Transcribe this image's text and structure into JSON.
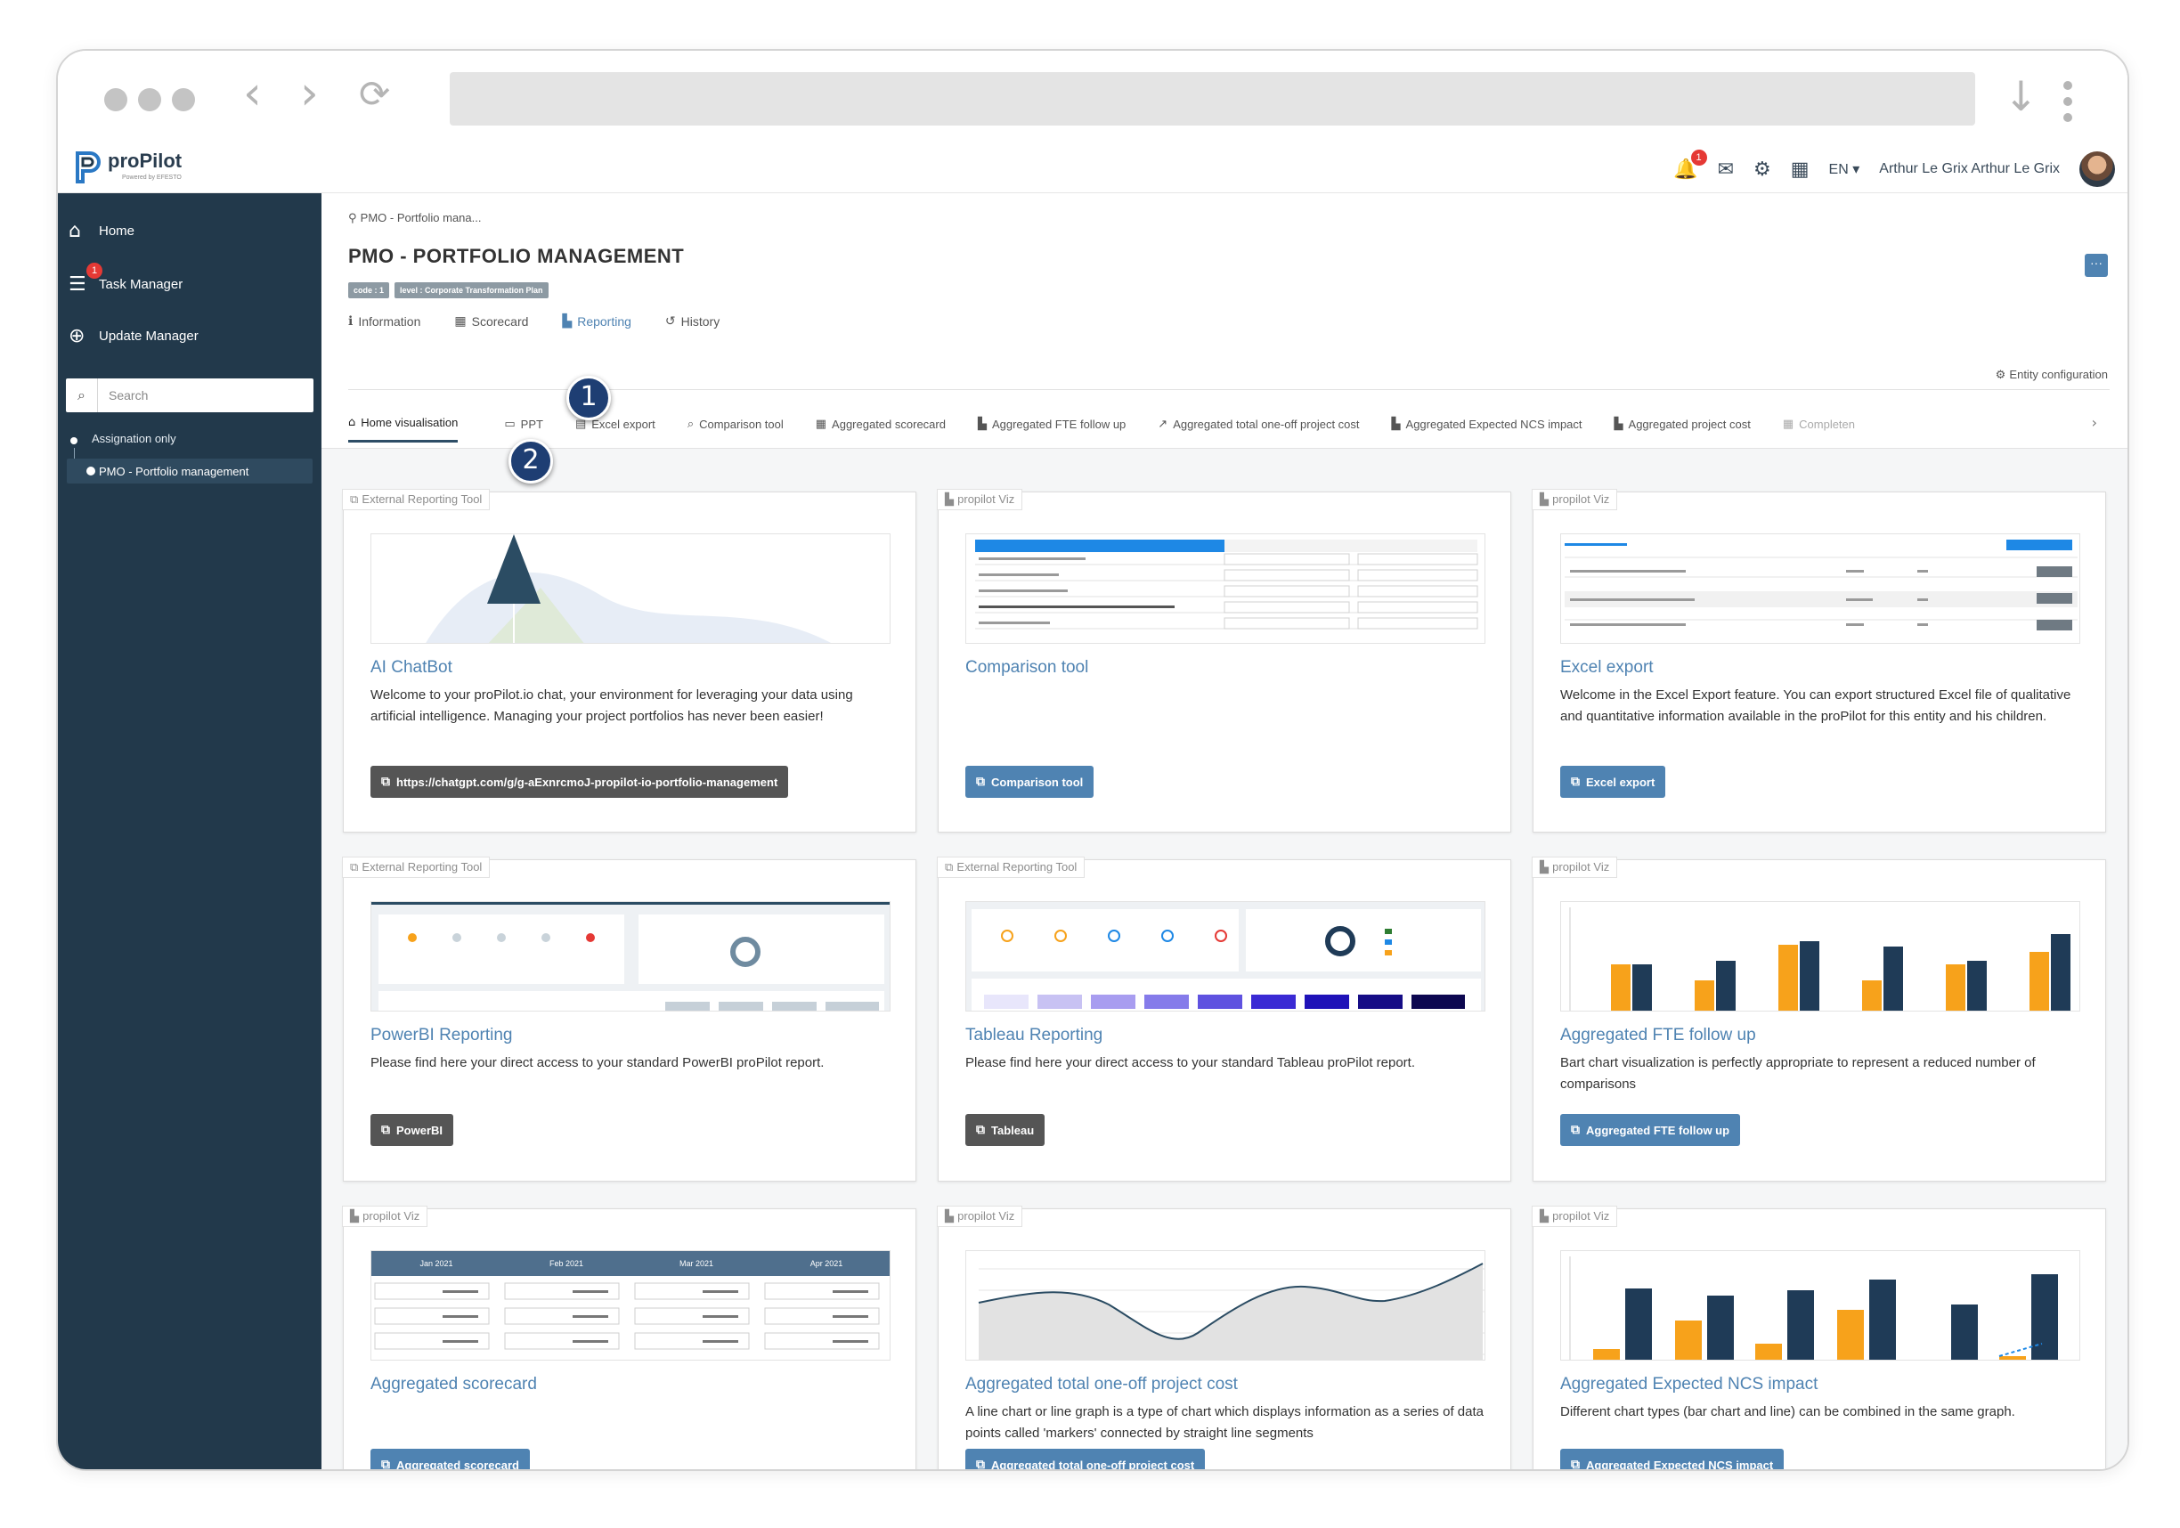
{
  "topbar": {
    "logo_text": "proPilot",
    "logo_sub": "Powered by EFESTO",
    "notification_count": "1",
    "language": "EN",
    "user_name": "Arthur Le Grix Arthur Le Grix"
  },
  "sidebar": {
    "home": "Home",
    "task_manager": "Task Manager",
    "task_badge": "1",
    "update_manager": "Update Manager",
    "search_placeholder": "Search",
    "tree_root": "Assignation only",
    "tree_item": "PMO - Portfolio management"
  },
  "breadcrumb": "PMO - Portfolio mana...",
  "page": {
    "title": "PMO - PORTFOLIO MANAGEMENT",
    "badge_code": "code : 1",
    "badge_level": "level : Corporate Transformation Plan",
    "entity_configuration": "Entity configuration"
  },
  "tabs": [
    {
      "label": "Information",
      "icon": "info-icon"
    },
    {
      "label": "Scorecard",
      "icon": "table-icon"
    },
    {
      "label": "Reporting",
      "icon": "bar-chart-icon"
    },
    {
      "label": "History",
      "icon": "history-icon"
    }
  ],
  "subtabs": [
    {
      "label": "Home visualisation"
    },
    {
      "label": "PPT"
    },
    {
      "label": "Excel export"
    },
    {
      "label": "Comparison tool"
    },
    {
      "label": "Aggregated scorecard"
    },
    {
      "label": "Aggregated FTE follow up"
    },
    {
      "label": "Aggregated total one-off project cost"
    },
    {
      "label": "Aggregated Expected NCS impact"
    },
    {
      "label": "Aggregated project cost"
    },
    {
      "label": "Completen"
    }
  ],
  "callouts": [
    "1",
    "2"
  ],
  "cards": [
    {
      "tag": "External Reporting Tool",
      "title": "AI ChatBot",
      "desc": "Welcome to your proPilot.io chat, your environment for leveraging your data using artificial intelligence. Managing your project portfolios has never been easier!",
      "button": "https://chatgpt.com/g/g-aExnrcmoJ-propilot-io-portfolio-management"
    },
    {
      "tag": "propilot Viz",
      "title": "Comparison tool",
      "desc": "",
      "button": "Comparison tool"
    },
    {
      "tag": "propilot Viz",
      "title": "Excel export",
      "desc": "Welcome in the Excel Export feature. You can export structured Excel file of qualitative and quantitative information available in the proPilot for this entity and his children.",
      "button": "Excel export"
    },
    {
      "tag": "External Reporting Tool",
      "title": "PowerBI Reporting",
      "desc": "Please find here your direct access to your standard PowerBI proPilot report.",
      "button": "PowerBI"
    },
    {
      "tag": "External Reporting Tool",
      "title": "Tableau Reporting",
      "desc": "Please find here your direct access to your standard Tableau proPilot report.",
      "button": "Tableau"
    },
    {
      "tag": "propilot Viz",
      "title": "Aggregated FTE follow up",
      "desc": "Bart chart visualization is perfectly appropriate to represent a reduced number of comparisons",
      "button": "Aggregated FTE follow up"
    },
    {
      "tag": "propilot Viz",
      "title": "Aggregated scorecard",
      "desc": "",
      "button": "Aggregated scorecard"
    },
    {
      "tag": "propilot Viz",
      "title": "Aggregated total one-off project cost",
      "desc": "A line chart or line graph is a type of chart which displays information as a series of data points called 'markers' connected by straight line segments",
      "button": "Aggregated total one-off project cost"
    },
    {
      "tag": "propilot Viz",
      "title": "Aggregated Expected NCS impact",
      "desc": "Different chart types (bar chart and line) can be combined in the same graph.",
      "button": "Aggregated Expected NCS impact"
    }
  ],
  "thumb_scorecard_headers": [
    "Jan 2021",
    "Feb 2021",
    "Mar 2021",
    "Apr 2021"
  ],
  "colors": {
    "sidebar": "#22394b",
    "accent": "#4f83b2",
    "navy_bar": "#1f3b57",
    "orange_bar": "#f7a21b"
  }
}
